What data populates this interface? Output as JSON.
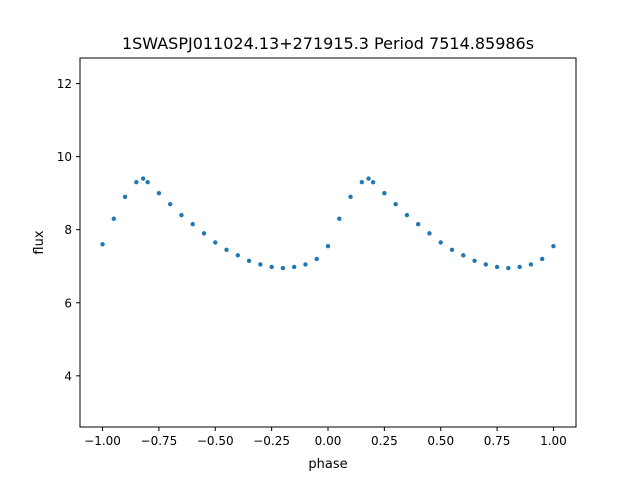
{
  "chart_data": {
    "type": "scatter",
    "title": "1SWASPJ011024.13+271915.3 Period 7514.85986s",
    "xlabel": "phase",
    "ylabel": "flux",
    "xlim": [
      -1.1,
      1.1
    ],
    "ylim": [
      2.6,
      12.7
    ],
    "xticks": [
      {
        "value": -1.0,
        "label": "−1.00"
      },
      {
        "value": -0.75,
        "label": "−0.75"
      },
      {
        "value": -0.5,
        "label": "−0.50"
      },
      {
        "value": -0.25,
        "label": "−0.25"
      },
      {
        "value": 0.0,
        "label": "0.00"
      },
      {
        "value": 0.25,
        "label": "0.25"
      },
      {
        "value": 0.5,
        "label": "0.50"
      },
      {
        "value": 0.75,
        "label": "0.75"
      },
      {
        "value": 1.0,
        "label": "1.00"
      }
    ],
    "yticks": [
      {
        "value": 4,
        "label": "4"
      },
      {
        "value": 6,
        "label": "6"
      },
      {
        "value": 8,
        "label": "8"
      },
      {
        "value": 10,
        "label": "10"
      },
      {
        "value": 12,
        "label": "12"
      }
    ],
    "grid": false,
    "legend": "none",
    "marker_color": "#1f77b4",
    "series": [
      {
        "x": [
          -1.0,
          -0.95,
          -0.9,
          -0.85,
          -0.82,
          -0.8,
          -0.75,
          -0.7,
          -0.65,
          -0.6,
          -0.55,
          -0.5,
          -0.45,
          -0.4,
          -0.35,
          -0.3,
          -0.25,
          -0.2,
          -0.15,
          -0.1,
          -0.05,
          0.0,
          0.05,
          0.1,
          0.15,
          0.18,
          0.2,
          0.25,
          0.3,
          0.35,
          0.4,
          0.45,
          0.5,
          0.55,
          0.6,
          0.65,
          0.7,
          0.75,
          0.8,
          0.85,
          0.9,
          0.95,
          1.0
        ],
        "y": [
          7.6,
          8.3,
          8.9,
          9.3,
          9.4,
          9.3,
          9.0,
          8.7,
          8.4,
          8.15,
          7.9,
          7.65,
          7.45,
          7.3,
          7.15,
          7.05,
          6.98,
          6.95,
          6.98,
          7.05,
          7.2,
          7.55,
          8.3,
          8.9,
          9.3,
          9.4,
          9.3,
          9.0,
          8.7,
          8.4,
          8.15,
          7.9,
          7.65,
          7.45,
          7.3,
          7.15,
          7.05,
          6.98,
          6.95,
          6.98,
          7.05,
          7.2,
          7.55
        ]
      }
    ]
  }
}
